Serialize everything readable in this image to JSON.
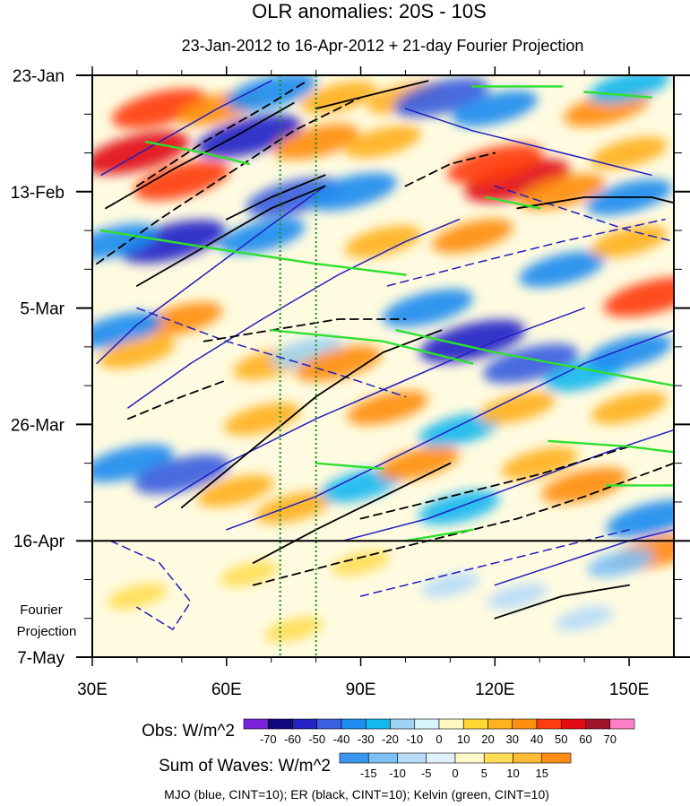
{
  "chart_data": {
    "type": "heatmap",
    "title": "OLR anomalies: 20S - 10S",
    "subtitle": "23-Jan-2012 to 16-Apr-2012 + 21-day Fourier Projection",
    "x_axis": {
      "range": [
        30,
        160
      ],
      "ticks": [
        30,
        60,
        90,
        120,
        150
      ],
      "tick_labels": [
        "30E",
        "60E",
        "90E",
        "120E",
        "150E"
      ]
    },
    "y_axis": {
      "range_days": [
        0,
        105
      ],
      "ticks_days": [
        0,
        21,
        42,
        63,
        84,
        105
      ],
      "tick_labels": [
        "23-Jan",
        "13-Feb",
        "5-Mar",
        "26-Mar",
        "16-Apr",
        "7-May"
      ],
      "projection_label": "Fourier\nProjection",
      "projection_start_day": 84
    },
    "reference_lines": [
      {
        "type": "vertical",
        "lon": 72,
        "style": "dotted",
        "color": "#1a8a1a"
      },
      {
        "type": "vertical",
        "lon": 80,
        "style": "dotted",
        "color": "#1a8a1a"
      },
      {
        "type": "horizontal",
        "day": 84,
        "style": "solid",
        "color": "#000000"
      }
    ],
    "obs_colorbar": {
      "label": "Obs: W/m^2",
      "levels": [
        -70,
        -60,
        -50,
        -40,
        -30,
        -20,
        -10,
        0,
        10,
        20,
        30,
        40,
        50,
        60,
        70
      ],
      "colors": [
        "#7a22d9",
        "#10087e",
        "#2323c8",
        "#3b5fe0",
        "#1e8cf0",
        "#16b8f0",
        "#9ed4f4",
        "#d8f4fb",
        "#fff7c4",
        "#ffd633",
        "#ffb11e",
        "#ff8e0e",
        "#ff3d10",
        "#e20c14",
        "#a1142a",
        "#ff80c8"
      ]
    },
    "waves_colorbar": {
      "label": "Sum of Waves: W/m^2",
      "levels": [
        -15,
        -10,
        -5,
        0,
        5,
        10,
        15
      ],
      "colors": [
        "#3a96ee",
        "#7ec0f5",
        "#b8dcf8",
        "#e0f1fb",
        "#fff8c8",
        "#ffdd55",
        "#ffbb33",
        "#ff8c14"
      ]
    },
    "blobs": [
      {
        "lon": 45,
        "day": 6,
        "value": 45
      },
      {
        "lon": 40,
        "day": 14,
        "value": 55
      },
      {
        "lon": 58,
        "day": 6,
        "value": 30
      },
      {
        "lon": 70,
        "day": 3,
        "value": -40
      },
      {
        "lon": 85,
        "day": 4,
        "value": 25
      },
      {
        "lon": 100,
        "day": 4,
        "value": 25
      },
      {
        "lon": 108,
        "day": 4,
        "value": -45
      },
      {
        "lon": 120,
        "day": 6,
        "value": -35
      },
      {
        "lon": 145,
        "day": 6,
        "value": 35
      },
      {
        "lon": 150,
        "day": 2,
        "value": -30
      },
      {
        "lon": 65,
        "day": 11,
        "value": -55
      },
      {
        "lon": 80,
        "day": 12,
        "value": 35
      },
      {
        "lon": 95,
        "day": 12,
        "value": 25
      },
      {
        "lon": 50,
        "day": 19,
        "value": 45
      },
      {
        "lon": 75,
        "day": 22,
        "value": -45
      },
      {
        "lon": 88,
        "day": 21,
        "value": -40
      },
      {
        "lon": 125,
        "day": 19,
        "value": 55
      },
      {
        "lon": 120,
        "day": 16,
        "value": 45
      },
      {
        "lon": 135,
        "day": 21,
        "value": 35
      },
      {
        "lon": 150,
        "day": 14,
        "value": 25
      },
      {
        "lon": 150,
        "day": 22,
        "value": -35
      },
      {
        "lon": 48,
        "day": 30,
        "value": -55
      },
      {
        "lon": 35,
        "day": 30,
        "value": -35
      },
      {
        "lon": 68,
        "day": 29,
        "value": -35
      },
      {
        "lon": 95,
        "day": 30,
        "value": 25
      },
      {
        "lon": 115,
        "day": 29,
        "value": 30
      },
      {
        "lon": 135,
        "day": 35,
        "value": -35
      },
      {
        "lon": 155,
        "day": 40,
        "value": 45
      },
      {
        "lon": 150,
        "day": 30,
        "value": 25
      },
      {
        "lon": 50,
        "day": 44,
        "value": 30
      },
      {
        "lon": 36,
        "day": 46,
        "value": -35
      },
      {
        "lon": 40,
        "day": 50,
        "value": 25
      },
      {
        "lon": 70,
        "day": 52,
        "value": 25
      },
      {
        "lon": 78,
        "day": 50,
        "value": -20
      },
      {
        "lon": 85,
        "day": 52,
        "value": 35
      },
      {
        "lon": 105,
        "day": 42,
        "value": -40
      },
      {
        "lon": 115,
        "day": 48,
        "value": -55
      },
      {
        "lon": 128,
        "day": 52,
        "value": -45
      },
      {
        "lon": 140,
        "day": 54,
        "value": -30
      },
      {
        "lon": 150,
        "day": 50,
        "value": -35
      },
      {
        "lon": 96,
        "day": 60,
        "value": 30
      },
      {
        "lon": 68,
        "day": 62,
        "value": 25
      },
      {
        "lon": 112,
        "day": 64,
        "value": -30
      },
      {
        "lon": 125,
        "day": 60,
        "value": 25
      },
      {
        "lon": 150,
        "day": 60,
        "value": 25
      },
      {
        "lon": 38,
        "day": 70,
        "value": -40
      },
      {
        "lon": 50,
        "day": 72,
        "value": -45
      },
      {
        "lon": 62,
        "day": 75,
        "value": 25
      },
      {
        "lon": 75,
        "day": 78,
        "value": 25
      },
      {
        "lon": 90,
        "day": 74,
        "value": -30
      },
      {
        "lon": 103,
        "day": 70,
        "value": 30
      },
      {
        "lon": 112,
        "day": 78,
        "value": -30
      },
      {
        "lon": 130,
        "day": 70,
        "value": 25
      },
      {
        "lon": 140,
        "day": 74,
        "value": 35
      },
      {
        "lon": 155,
        "day": 80,
        "value": -40
      },
      {
        "lon": 156,
        "day": 86,
        "value": 35
      },
      {
        "lon": 40,
        "day": 94,
        "value": 8
      },
      {
        "lon": 65,
        "day": 90,
        "value": 6
      },
      {
        "lon": 90,
        "day": 88,
        "value": 6
      },
      {
        "lon": 110,
        "day": 92,
        "value": -6
      },
      {
        "lon": 125,
        "day": 94,
        "value": -8
      },
      {
        "lon": 140,
        "day": 98,
        "value": -6
      },
      {
        "lon": 148,
        "day": 88,
        "value": -14
      },
      {
        "lon": 75,
        "day": 100,
        "value": 6
      }
    ],
    "contours": {
      "mjo": {
        "name": "MJO",
        "color": "#1f1fbf",
        "cint": 10,
        "lines": [
          [
            [
              31,
              52
            ],
            [
              40,
              45
            ],
            [
              55,
              36
            ],
            [
              70,
              27
            ],
            [
              82,
              20
            ]
          ],
          [
            [
              38,
              60
            ],
            [
              52,
              52
            ],
            [
              68,
              44
            ],
            [
              85,
              36
            ],
            [
              100,
              30
            ],
            [
              112,
              26
            ]
          ],
          [
            [
              44,
              78
            ],
            [
              60,
              70
            ],
            [
              80,
              62
            ],
            [
              100,
              55
            ],
            [
              120,
              48
            ],
            [
              140,
              42
            ]
          ],
          [
            [
              60,
              82
            ],
            [
              80,
              76
            ],
            [
              100,
              68
            ],
            [
              120,
              60
            ],
            [
              140,
              52
            ],
            [
              160,
              46
            ]
          ],
          [
            [
              86,
              84
            ],
            [
              105,
              80
            ],
            [
              125,
              74
            ],
            [
              145,
              68
            ],
            [
              160,
              64
            ]
          ],
          [
            [
              120,
              92
            ],
            [
              135,
              88
            ],
            [
              150,
              84
            ],
            [
              160,
              82
            ]
          ],
          [
            [
              32,
              18
            ],
            [
              45,
              12
            ],
            [
              58,
              6
            ],
            [
              70,
              1
            ]
          ],
          [
            [
              100,
              6
            ],
            [
              115,
              10
            ],
            [
              135,
              14
            ],
            [
              155,
              18
            ]
          ]
        ],
        "dashed": [
          [
            [
              34,
              84
            ],
            [
              45,
              88
            ],
            [
              52,
              95
            ],
            [
              48,
              100
            ],
            [
              40,
              96
            ]
          ],
          [
            [
              90,
              94
            ],
            [
              110,
              90
            ],
            [
              130,
              86
            ],
            [
              150,
              82
            ]
          ],
          [
            [
              96,
              38
            ],
            [
              115,
              34
            ],
            [
              135,
              30
            ],
            [
              158,
              26
            ]
          ],
          [
            [
              40,
              42
            ],
            [
              60,
              48
            ],
            [
              85,
              54
            ],
            [
              100,
              58
            ]
          ],
          [
            [
              120,
              20
            ],
            [
              135,
              24
            ],
            [
              150,
              28
            ],
            [
              160,
              30
            ]
          ]
        ]
      },
      "er": {
        "name": "ER",
        "color": "#000000",
        "cint": 10,
        "lines": [
          [
            [
              33,
              24
            ],
            [
              48,
              17
            ],
            [
              62,
              11
            ],
            [
              75,
              5
            ]
          ],
          [
            [
              40,
              38
            ],
            [
              55,
              31
            ],
            [
              70,
              24
            ],
            [
              82,
              20
            ]
          ],
          [
            [
              50,
              78
            ],
            [
              65,
              68
            ],
            [
              80,
              58
            ],
            [
              95,
              50
            ],
            [
              108,
              46
            ]
          ],
          [
            [
              66,
              88
            ],
            [
              80,
              82
            ],
            [
              95,
              76
            ],
            [
              110,
              70
            ]
          ],
          [
            [
              80,
              6
            ],
            [
              95,
              3
            ],
            [
              105,
              1
            ]
          ],
          [
            [
              120,
              98
            ],
            [
              135,
              94
            ],
            [
              150,
              92
            ]
          ],
          [
            [
              125,
              24
            ],
            [
              140,
              22
            ],
            [
              155,
              22
            ],
            [
              160,
              23
            ]
          ],
          [
            [
              60,
              26
            ],
            [
              70,
              22
            ],
            [
              82,
              18
            ]
          ]
        ],
        "dashed": [
          [
            [
              31,
              34
            ],
            [
              45,
              26
            ],
            [
              60,
              18
            ],
            [
              75,
              10
            ],
            [
              90,
              4
            ]
          ],
          [
            [
              40,
              20
            ],
            [
              55,
              12
            ],
            [
              68,
              6
            ],
            [
              78,
              1
            ]
          ],
          [
            [
              66,
              92
            ],
            [
              85,
              88
            ],
            [
              105,
              84
            ],
            [
              125,
              80
            ],
            [
              140,
              76
            ],
            [
              160,
              70
            ]
          ],
          [
            [
              90,
              80
            ],
            [
              110,
              76
            ],
            [
              130,
              72
            ],
            [
              150,
              67
            ]
          ],
          [
            [
              55,
              48
            ],
            [
              70,
              46
            ],
            [
              85,
              44
            ],
            [
              100,
              44
            ]
          ],
          [
            [
              100,
              20
            ],
            [
              110,
              16
            ],
            [
              120,
              14
            ]
          ],
          [
            [
              38,
              62
            ],
            [
              50,
              58
            ],
            [
              60,
              55
            ]
          ]
        ]
      },
      "kelvin": {
        "name": "Kelvin",
        "color": "#2fe02f",
        "cint": 10,
        "lines": [
          [
            [
              42,
              12
            ],
            [
              55,
              14
            ],
            [
              65,
              16
            ]
          ],
          [
            [
              32,
              28
            ],
            [
              55,
              31
            ],
            [
              80,
              34
            ],
            [
              100,
              36
            ]
          ],
          [
            [
              98,
              46
            ],
            [
              120,
              50
            ],
            [
              140,
              53
            ],
            [
              160,
              56
            ]
          ],
          [
            [
              70,
              46
            ],
            [
              95,
              48
            ],
            [
              115,
              52
            ]
          ],
          [
            [
              118,
              22
            ],
            [
              130,
              24
            ]
          ],
          [
            [
              140,
              3
            ],
            [
              155,
              4
            ]
          ],
          [
            [
              115,
              2
            ],
            [
              135,
              2
            ]
          ],
          [
            [
              132,
              66
            ],
            [
              150,
              67
            ],
            [
              160,
              68
            ]
          ],
          [
            [
              100,
              84
            ],
            [
              115,
              82
            ]
          ],
          [
            [
              145,
              74
            ],
            [
              160,
              74
            ]
          ],
          [
            [
              80,
              70
            ],
            [
              95,
              71
            ]
          ]
        ]
      }
    },
    "note_text": "MJO (blue, CINT=10); ER (black, CINT=10); Kelvin (green, CINT=10)"
  }
}
